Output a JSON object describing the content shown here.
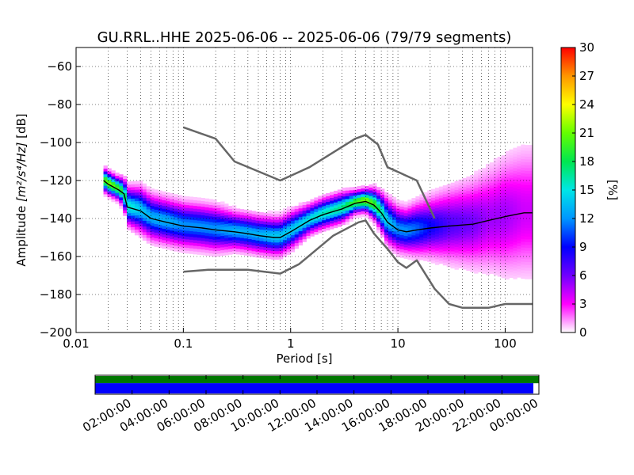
{
  "chart_data": [
    {
      "type": "heatmap",
      "title": "GU.RRL..HHE   2025-06-06 -- 2025-06-06  (79/79 segments)",
      "xlabel": "Period [s]",
      "ylabel": "Amplitude [m²/s⁴/Hz] [dB]",
      "ylabel_prefix": "Amplitude ",
      "ylabel_units": "[m²/s⁴/Hz]",
      "ylabel_suffix": " [dB]",
      "xscale": "log",
      "xlim": [
        0.01,
        180
      ],
      "ylim": [
        -200,
        -50
      ],
      "grid": true,
      "x_ticks": [
        {
          "value": 0.01,
          "label": "0.01"
        },
        {
          "value": 0.1,
          "label": "0.1"
        },
        {
          "value": 1,
          "label": "1"
        },
        {
          "value": 10,
          "label": "10"
        },
        {
          "value": 100,
          "label": "100"
        }
      ],
      "y_ticks": [
        {
          "value": -60,
          "label": "−60"
        },
        {
          "value": -80,
          "label": "−80"
        },
        {
          "value": -100,
          "label": "−100"
        },
        {
          "value": -120,
          "label": "−120"
        },
        {
          "value": -140,
          "label": "−140"
        },
        {
          "value": -160,
          "label": "−160"
        },
        {
          "value": -180,
          "label": "−180"
        },
        {
          "value": -200,
          "label": "−200"
        }
      ],
      "colorbar": {
        "label": "[%]",
        "range": [
          0,
          30
        ],
        "ticks": [
          {
            "value": 0,
            "label": "0"
          },
          {
            "value": 3,
            "label": "3"
          },
          {
            "value": 6,
            "label": "6"
          },
          {
            "value": 9,
            "label": "9"
          },
          {
            "value": 12,
            "label": "12"
          },
          {
            "value": 15,
            "label": "15"
          },
          {
            "value": 18,
            "label": "18"
          },
          {
            "value": 21,
            "label": "21"
          },
          {
            "value": 24,
            "label": "24"
          },
          {
            "value": 27,
            "label": "27"
          },
          {
            "value": 30,
            "label": "30"
          }
        ],
        "colors": [
          "#ffffff",
          "#ff00ff",
          "#7000ff",
          "#0000ff",
          "#0096ff",
          "#00e6e6",
          "#00e650",
          "#64ff00",
          "#ffff00",
          "#ff9600",
          "#ff0000"
        ]
      },
      "density_profile": {
        "x": [
          0.018,
          0.02,
          0.025,
          0.028,
          0.03,
          0.04,
          0.05,
          0.07,
          0.1,
          0.15,
          0.2,
          0.3,
          0.4,
          0.5,
          0.7,
          0.8,
          1,
          1.5,
          2,
          3,
          4,
          5,
          6,
          7,
          8,
          10,
          12,
          15,
          20,
          30,
          50,
          70,
          100,
          150,
          180
        ],
        "center": [
          -120,
          -122,
          -125,
          -127,
          -134,
          -136,
          -140,
          -142,
          -144,
          -145,
          -146,
          -147,
          -148,
          -149,
          -150,
          -150,
          -147,
          -141,
          -138,
          -135,
          -132,
          -131,
          -133,
          -137,
          -142,
          -146,
          -147,
          -146,
          -145,
          -144,
          -143,
          -141,
          -139,
          -137,
          -137
        ],
        "spread": [
          3,
          3,
          3,
          4,
          5,
          6,
          6,
          6,
          6,
          6,
          6,
          5,
          5,
          5,
          5,
          5,
          5,
          4,
          4,
          4,
          3,
          3,
          4,
          5,
          6,
          6,
          6,
          7,
          8,
          10,
          12,
          14,
          16,
          18,
          18
        ],
        "peak_percent": [
          20,
          22,
          20,
          18,
          16,
          14,
          13,
          13,
          12,
          12,
          12,
          13,
          13,
          13,
          14,
          14,
          14,
          15,
          16,
          17,
          20,
          22,
          20,
          17,
          14,
          12,
          12,
          11,
          9,
          7,
          6,
          5,
          5,
          4,
          4
        ]
      },
      "series": [
        {
          "type": "line",
          "color": "#000000",
          "x": [
            0.018,
            0.02,
            0.025,
            0.028,
            0.03,
            0.04,
            0.05,
            0.07,
            0.1,
            0.15,
            0.2,
            0.3,
            0.4,
            0.5,
            0.7,
            0.8,
            1,
            1.5,
            2,
            3,
            4,
            5,
            6,
            7,
            8,
            10,
            12,
            15,
            20,
            30,
            50,
            70,
            100,
            150,
            180
          ],
          "y": [
            -120,
            -122,
            -125,
            -127,
            -134,
            -136,
            -140,
            -142,
            -144,
            -145,
            -146,
            -147,
            -148,
            -149,
            -150,
            -150,
            -147,
            -141,
            -138,
            -135,
            -132,
            -131,
            -133,
            -137,
            -142,
            -146,
            -147,
            -146,
            -145,
            -144,
            -143,
            -141,
            -139,
            -137,
            -137
          ]
        },
        {
          "type": "line",
          "color": "#666666",
          "x": [
            0.1,
            0.2,
            0.3,
            0.8,
            1.5,
            4,
            5,
            6.5,
            8,
            15,
            22
          ],
          "y": [
            -92,
            -98,
            -110,
            -120,
            -113,
            -98,
            -96,
            -101,
            -113,
            -120,
            -140
          ]
        },
        {
          "type": "line",
          "color": "#666666",
          "x": [
            0.1,
            0.17,
            0.4,
            0.8,
            1.2,
            2.5,
            4.3,
            5,
            6,
            8,
            10,
            12,
            15,
            22,
            30,
            40,
            70,
            100,
            180
          ],
          "y": [
            -168,
            -167,
            -167,
            -169,
            -164,
            -149,
            -142,
            -141,
            -148,
            -156,
            -163,
            -166,
            -162,
            -177,
            -185,
            -187,
            -187,
            -185,
            -185
          ]
        }
      ]
    },
    {
      "type": "bar",
      "xlabel": "",
      "x_ticks": [
        "02:00:00",
        "04:00:00",
        "06:00:00",
        "08:00:00",
        "10:00:00",
        "12:00:00",
        "14:00:00",
        "16:00:00",
        "18:00:00",
        "20:00:00",
        "22:00:00",
        "00:00:00"
      ],
      "rows": [
        {
          "color": "#007700",
          "start_hour": 0,
          "end_hour": 24
        },
        {
          "color": "#0000ff",
          "start_hour": 0,
          "end_hour": 23.7
        }
      ]
    }
  ]
}
